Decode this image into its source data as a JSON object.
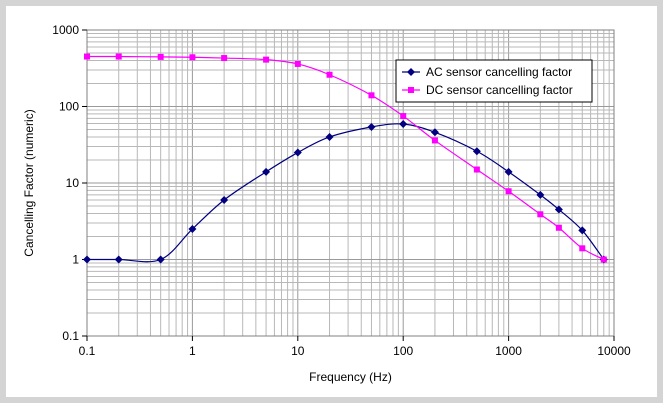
{
  "chart_data": {
    "type": "line",
    "title": "",
    "xlabel": "Frequency (Hz)",
    "ylabel": "Cancelling Factor (numeric)",
    "xscale": "log",
    "yscale": "log",
    "xlim": [
      0.1,
      10000
    ],
    "ylim": [
      0.1,
      1000
    ],
    "x_ticks": [
      "0.1",
      "1",
      "10",
      "100",
      "1000",
      "10000"
    ],
    "y_ticks": [
      "0.1",
      "1",
      "10",
      "100",
      "1000"
    ],
    "grid": true,
    "legend_position": "top-right",
    "series": [
      {
        "name": "AC sensor cancelling factor",
        "color": "#000080",
        "marker": "diamond",
        "x": [
          0.1,
          0.2,
          0.5,
          1,
          2,
          5,
          10,
          20,
          50,
          100,
          200,
          500,
          1000,
          2000,
          3000,
          5000,
          8000
        ],
        "y": [
          1,
          1,
          1,
          2.5,
          6,
          14,
          25,
          40,
          54,
          59,
          46,
          26,
          14,
          7,
          4.5,
          2.4,
          1
        ]
      },
      {
        "name": "DC sensor cancelling factor",
        "color": "#ff00ff",
        "marker": "square",
        "x": [
          0.1,
          0.2,
          0.5,
          1,
          2,
          5,
          10,
          20,
          50,
          100,
          200,
          500,
          1000,
          2000,
          3000,
          5000,
          8000
        ],
        "y": [
          450,
          450,
          445,
          440,
          430,
          410,
          360,
          260,
          140,
          75,
          36,
          15,
          7.8,
          3.9,
          2.6,
          1.4,
          1
        ]
      }
    ]
  }
}
